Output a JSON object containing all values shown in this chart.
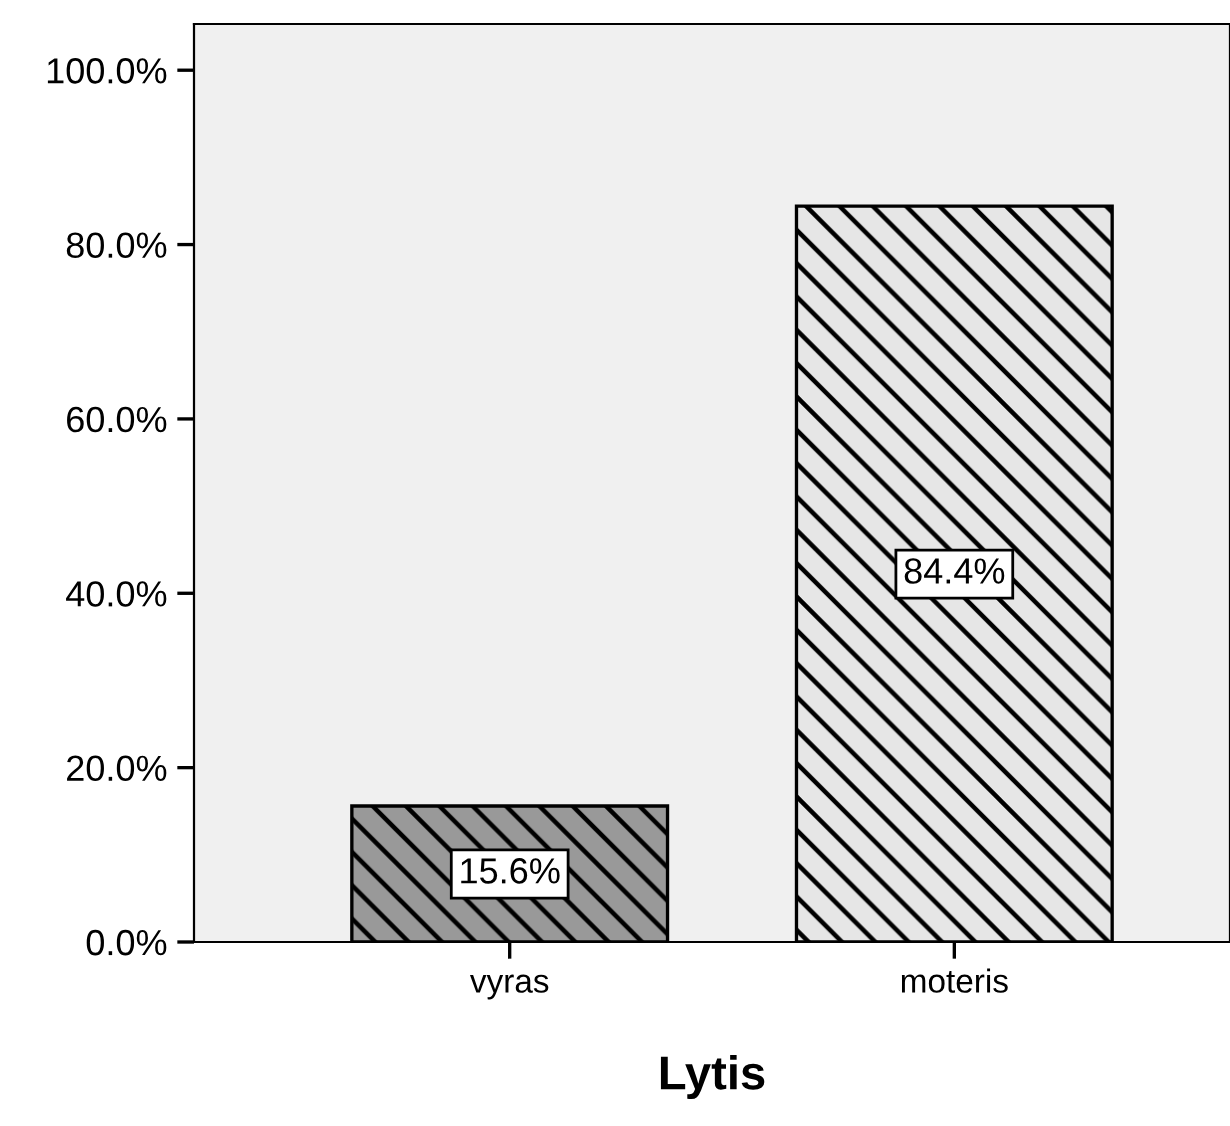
{
  "chart_data": {
    "type": "bar",
    "xlabel": "Lytis",
    "categories": [
      "vyras",
      "moteris"
    ],
    "values": [
      15.6,
      84.4
    ],
    "colors": [
      "#999999",
      "#e6e6e6"
    ],
    "value_labels": [
      "15.6%",
      "84.4%"
    ],
    "ylim": [
      0,
      105.3
    ],
    "yticks": [
      {
        "value": 0,
        "label": "0.0%"
      },
      {
        "value": 20,
        "label": "20.0%"
      },
      {
        "value": 40,
        "label": "40.0%"
      },
      {
        "value": 60,
        "label": "60.0%"
      },
      {
        "value": 80,
        "label": "80.0%"
      },
      {
        "value": 100,
        "label": "100.0%"
      }
    ],
    "grid": false,
    "legend": false
  }
}
